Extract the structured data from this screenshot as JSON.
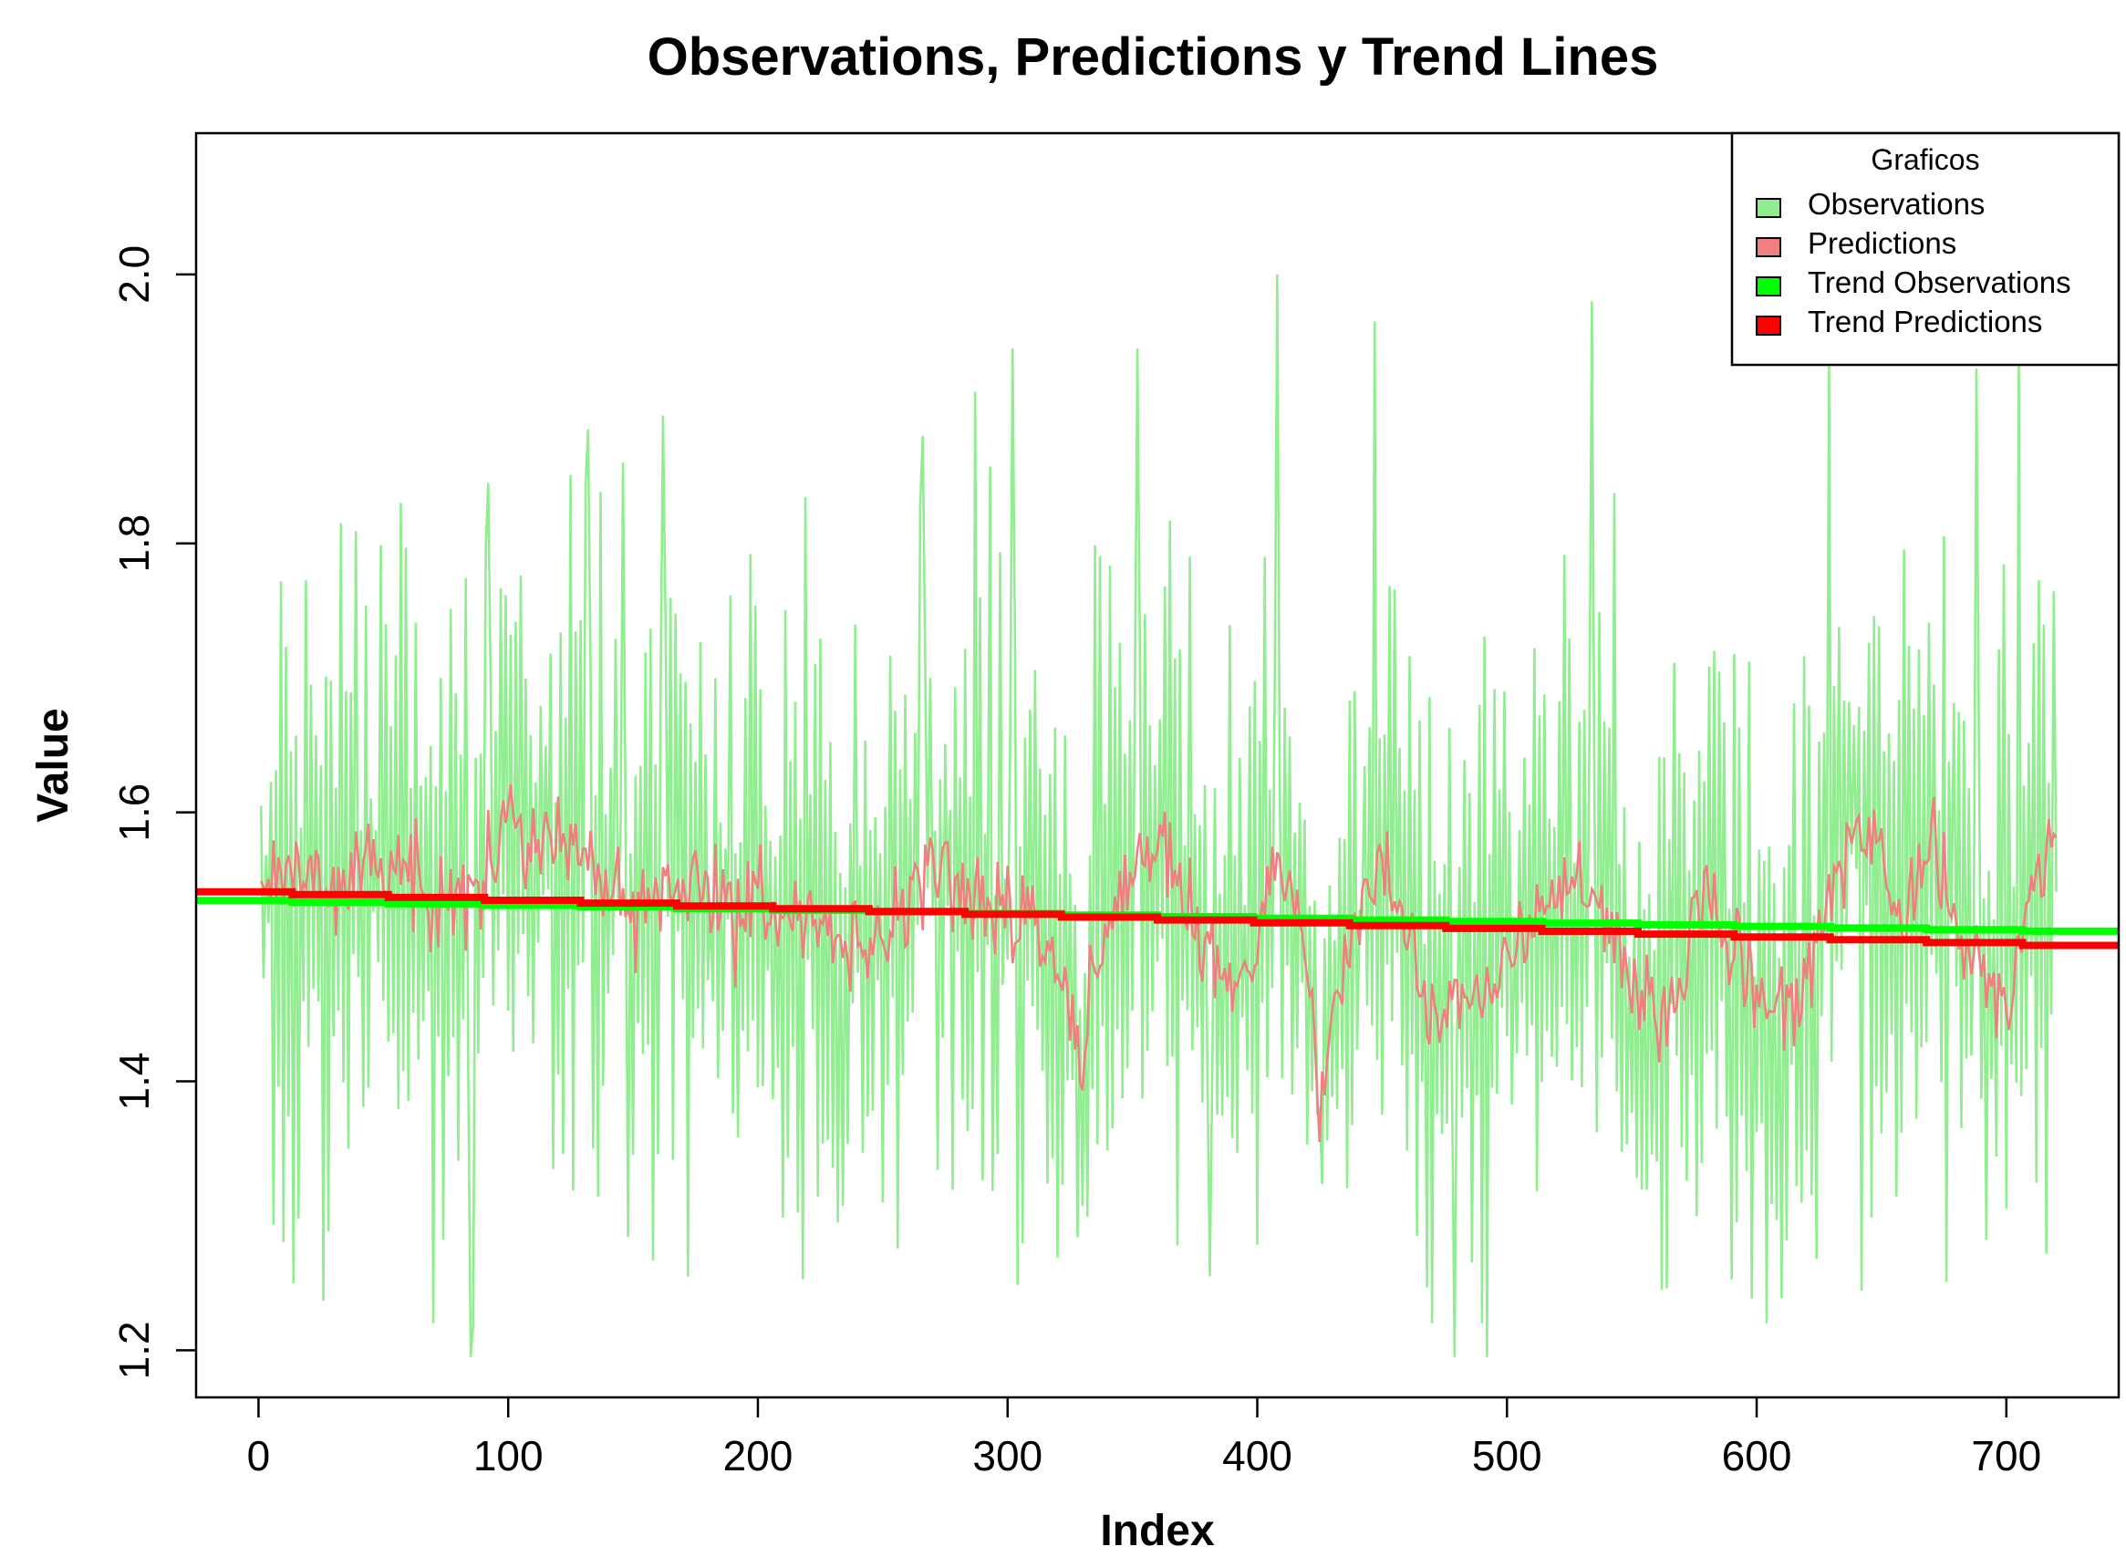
{
  "chart_data": {
    "type": "line",
    "title": "Observations, Predictions y Trend Lines",
    "xlabel": "Index",
    "ylabel": "Value",
    "xlim": [
      -25,
      745
    ],
    "ylim": [
      1.165,
      2.105
    ],
    "x_ticks": [
      0,
      100,
      200,
      300,
      400,
      500,
      600,
      700
    ],
    "x_tick_labels": [
      "0",
      "100",
      "200",
      "300",
      "400",
      "500",
      "600",
      "700"
    ],
    "y_ticks": [
      1.2,
      1.4,
      1.6,
      1.8,
      2.0
    ],
    "y_tick_labels": [
      "1.2",
      "1.4",
      "1.6",
      "1.8",
      "2.0"
    ],
    "grid": false,
    "legend": {
      "title": "Graficos",
      "position": "top-right",
      "entries": [
        {
          "label": "Observations",
          "color": "#90EE90"
        },
        {
          "label": "Predictions",
          "color": "#F08080"
        },
        {
          "label": "Trend Observations",
          "color": "#00FF00"
        },
        {
          "label": "Trend Predictions",
          "color": "#FF0000"
        }
      ]
    },
    "series": [
      {
        "name": "Observations",
        "color": "#90EE90",
        "style": "thin line",
        "x_start": 1,
        "x_step": 1,
        "n_points": 720,
        "mean": 1.52,
        "approx_min": 1.195,
        "approx_max": 2.0,
        "visible_peaks": [
          {
            "x": 14,
            "y": 1.25
          },
          {
            "x": 33,
            "y": 1.815
          },
          {
            "x": 57,
            "y": 1.83
          },
          {
            "x": 85,
            "y": 1.195
          },
          {
            "x": 92,
            "y": 1.845
          },
          {
            "x": 132,
            "y": 1.885
          },
          {
            "x": 146,
            "y": 1.86
          },
          {
            "x": 162,
            "y": 1.895
          },
          {
            "x": 266,
            "y": 1.88
          },
          {
            "x": 302,
            "y": 1.945
          },
          {
            "x": 352,
            "y": 1.945
          },
          {
            "x": 381,
            "y": 1.255
          },
          {
            "x": 408,
            "y": 2.0
          },
          {
            "x": 447,
            "y": 1.965
          },
          {
            "x": 479,
            "y": 1.195
          },
          {
            "x": 492,
            "y": 1.195
          },
          {
            "x": 534,
            "y": 1.98
          },
          {
            "x": 562,
            "y": 1.245
          },
          {
            "x": 629,
            "y": 1.935
          },
          {
            "x": 688,
            "y": 1.93
          },
          {
            "x": 705,
            "y": 1.945
          }
        ]
      },
      {
        "name": "Predictions",
        "color": "#F08080",
        "style": "thin line",
        "x_start": 1,
        "x_step": 1,
        "n_points": 720,
        "smoothed_path": [
          {
            "x": 1,
            "y": 1.55
          },
          {
            "x": 10,
            "y": 1.54
          },
          {
            "x": 20,
            "y": 1.56
          },
          {
            "x": 30,
            "y": 1.545
          },
          {
            "x": 40,
            "y": 1.57
          },
          {
            "x": 50,
            "y": 1.55
          },
          {
            "x": 60,
            "y": 1.56
          },
          {
            "x": 70,
            "y": 1.54
          },
          {
            "x": 80,
            "y": 1.535
          },
          {
            "x": 90,
            "y": 1.55
          },
          {
            "x": 100,
            "y": 1.595
          },
          {
            "x": 110,
            "y": 1.575
          },
          {
            "x": 120,
            "y": 1.555
          },
          {
            "x": 130,
            "y": 1.57
          },
          {
            "x": 140,
            "y": 1.54
          },
          {
            "x": 150,
            "y": 1.535
          },
          {
            "x": 160,
            "y": 1.53
          },
          {
            "x": 170,
            "y": 1.555
          },
          {
            "x": 180,
            "y": 1.545
          },
          {
            "x": 190,
            "y": 1.525
          },
          {
            "x": 200,
            "y": 1.535
          },
          {
            "x": 210,
            "y": 1.525
          },
          {
            "x": 220,
            "y": 1.53
          },
          {
            "x": 230,
            "y": 1.51
          },
          {
            "x": 240,
            "y": 1.495
          },
          {
            "x": 250,
            "y": 1.51
          },
          {
            "x": 260,
            "y": 1.535
          },
          {
            "x": 270,
            "y": 1.565
          },
          {
            "x": 280,
            "y": 1.545
          },
          {
            "x": 290,
            "y": 1.52
          },
          {
            "x": 300,
            "y": 1.535
          },
          {
            "x": 310,
            "y": 1.52
          },
          {
            "x": 320,
            "y": 1.485
          },
          {
            "x": 330,
            "y": 1.42
          },
          {
            "x": 340,
            "y": 1.51
          },
          {
            "x": 350,
            "y": 1.565
          },
          {
            "x": 360,
            "y": 1.575
          },
          {
            "x": 370,
            "y": 1.54
          },
          {
            "x": 380,
            "y": 1.5
          },
          {
            "x": 390,
            "y": 1.47
          },
          {
            "x": 400,
            "y": 1.5
          },
          {
            "x": 410,
            "y": 1.565
          },
          {
            "x": 420,
            "y": 1.5
          },
          {
            "x": 425,
            "y": 1.395
          },
          {
            "x": 430,
            "y": 1.45
          },
          {
            "x": 440,
            "y": 1.515
          },
          {
            "x": 450,
            "y": 1.565
          },
          {
            "x": 460,
            "y": 1.51
          },
          {
            "x": 470,
            "y": 1.45
          },
          {
            "x": 480,
            "y": 1.47
          },
          {
            "x": 490,
            "y": 1.455
          },
          {
            "x": 500,
            "y": 1.49
          },
          {
            "x": 510,
            "y": 1.525
          },
          {
            "x": 520,
            "y": 1.535
          },
          {
            "x": 530,
            "y": 1.545
          },
          {
            "x": 540,
            "y": 1.52
          },
          {
            "x": 550,
            "y": 1.47
          },
          {
            "x": 560,
            "y": 1.44
          },
          {
            "x": 570,
            "y": 1.475
          },
          {
            "x": 580,
            "y": 1.55
          },
          {
            "x": 590,
            "y": 1.5
          },
          {
            "x": 600,
            "y": 1.465
          },
          {
            "x": 610,
            "y": 1.45
          },
          {
            "x": 620,
            "y": 1.47
          },
          {
            "x": 630,
            "y": 1.55
          },
          {
            "x": 640,
            "y": 1.58
          },
          {
            "x": 650,
            "y": 1.565
          },
          {
            "x": 660,
            "y": 1.52
          },
          {
            "x": 670,
            "y": 1.575
          },
          {
            "x": 680,
            "y": 1.51
          },
          {
            "x": 690,
            "y": 1.495
          },
          {
            "x": 700,
            "y": 1.45
          },
          {
            "x": 710,
            "y": 1.545
          },
          {
            "x": 720,
            "y": 1.575
          }
        ]
      },
      {
        "name": "Trend Observations",
        "color": "#00FF00",
        "style": "thick stepped line",
        "points": [
          {
            "x": -25,
            "y": 1.535
          },
          {
            "x": 745,
            "y": 1.511
          }
        ]
      },
      {
        "name": "Trend Predictions",
        "color": "#FF0000",
        "style": "thick stepped line",
        "points": [
          {
            "x": -25,
            "y": 1.542
          },
          {
            "x": 745,
            "y": 1.5
          }
        ]
      }
    ]
  }
}
